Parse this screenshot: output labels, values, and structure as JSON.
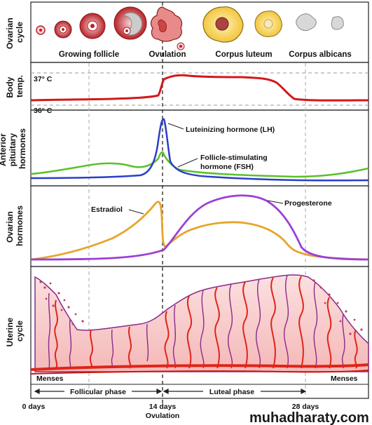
{
  "rows": {
    "ovarian_cycle": [
      "Ovarian",
      "cycle"
    ],
    "body_temp": [
      "Body",
      "temp."
    ],
    "anterior_pituitary": [
      "Anterior",
      "pituitary",
      "hormones"
    ],
    "ovarian_hormones": [
      "Ovarian",
      "hormones"
    ],
    "uterine_cycle": [
      "Uterine",
      "cycle"
    ]
  },
  "ovary_stages": {
    "growing_follicle": "Growing follicle",
    "ovulation": "Ovulation",
    "corpus_luteum": "Corpus luteum",
    "corpus_albicans": "Corpus albicans"
  },
  "temperature": {
    "high": "37° C",
    "low": "36° C"
  },
  "pituitary": {
    "lh": "Luteinizing hormone (LH)",
    "fsh_line1": "Follicle-stimulating",
    "fsh_line2": "hormone (FSH)"
  },
  "ovarian_hormones": {
    "estradiol": "Estradiol",
    "progesterone": "Progesterone"
  },
  "phases": {
    "menses_left": "Menses",
    "menses_right": "Menses",
    "follicular": "Follicular phase",
    "luteal": "Luteal phase"
  },
  "timeline": {
    "day0": "0 days",
    "day14": "14 days",
    "day14_sub": "Ovulation",
    "day28": "28 days"
  },
  "watermark": "muhadharaty.com",
  "colors": {
    "temp": "#d4181c",
    "lh": "#2a3fc8",
    "fsh": "#5cc02a",
    "estradiol": "#e8a42a",
    "progesterone": "#9b3fd6",
    "endometrium": "#f7c3c3",
    "artery": "#e02418",
    "gland": "#8a2a8a"
  }
}
